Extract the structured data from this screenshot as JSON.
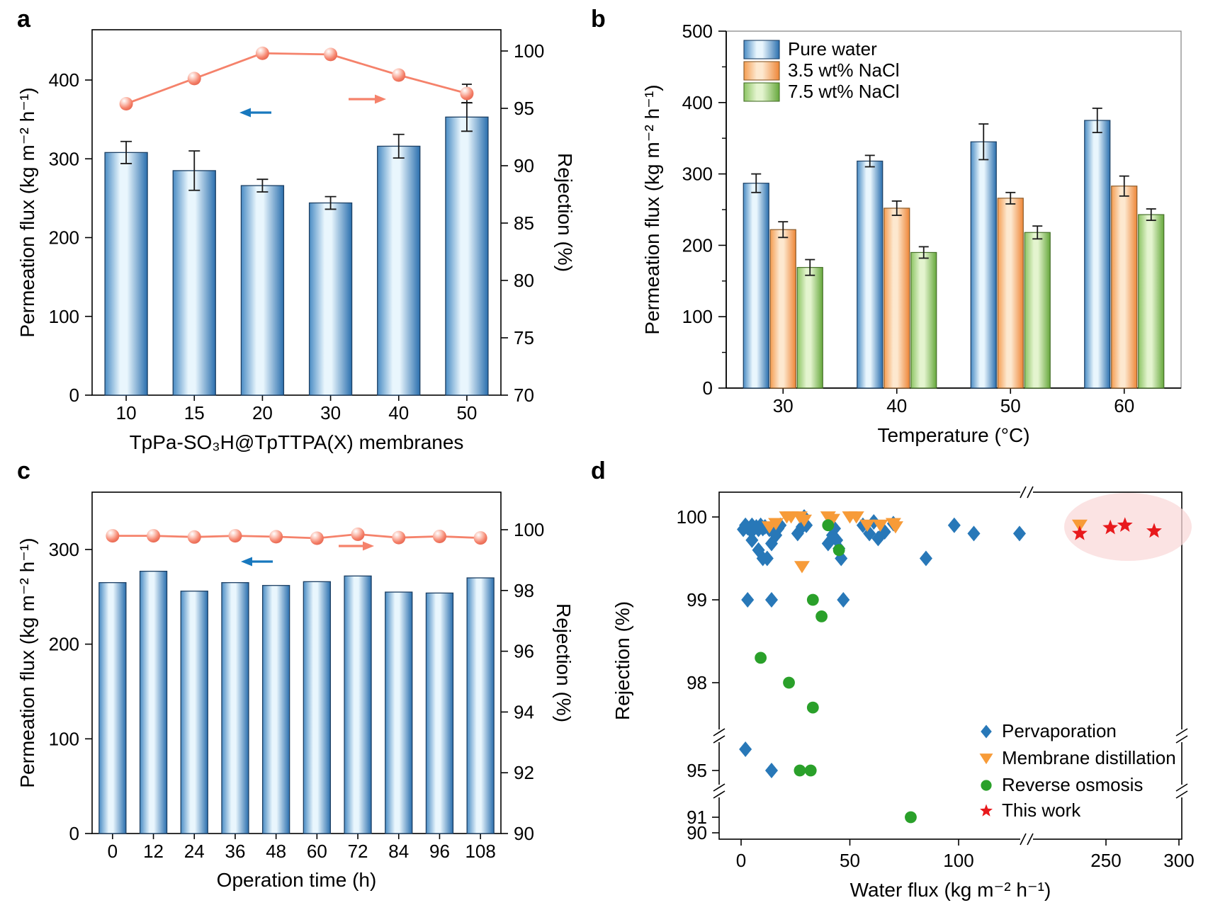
{
  "figure": {
    "background": "#ffffff"
  },
  "colors": {
    "bar_blue": {
      "edge": "#4a8cc4",
      "light": "#e9f6fd",
      "dark": "#2a6fae",
      "border": "#1c3f63"
    },
    "bar_orange": {
      "edge": "#f49d52",
      "light": "#fde8cf",
      "dark": "#ee8637",
      "border": "#8a5a28"
    },
    "bar_green": {
      "edge": "#8cc463",
      "light": "#e4f4cf",
      "dark": "#66a83c",
      "border": "#47702a"
    },
    "line_salmon": "#f5826b",
    "marker_salmon_highlight": "#fcc9bd",
    "arrow_blue": "#1878be",
    "error_bar": "#1a1a1a",
    "axis": "#000000",
    "box_gray": "#8a8a8a",
    "scatter": {
      "pervaporation": "#2878b8",
      "membrane_distillation": "#f79b38",
      "reverse_osmosis": "#2aa02a",
      "this_work": "#e8191c"
    },
    "highlight_ellipse": "#fadada"
  },
  "chart_data": [
    {
      "panel_label": "a",
      "type": "bar+line",
      "categories": [
        "10",
        "15",
        "20",
        "30",
        "40",
        "50"
      ],
      "bars": {
        "name": "Permeation flux",
        "values": [
          308,
          285,
          266,
          244,
          316,
          353
        ],
        "errors": [
          14,
          25,
          8,
          8,
          15,
          18
        ]
      },
      "line": {
        "name": "Rejection",
        "values": [
          95.4,
          97.6,
          99.8,
          99.7,
          97.9,
          96.3
        ],
        "errors": [
          0,
          0,
          0,
          0,
          0,
          0.8
        ]
      },
      "xlabel": "TpPa-SO₃H@TpTTPA(X) membranes",
      "ylabel_left": "Permeation flux (kg m⁻² h⁻¹)",
      "ylabel_right": "Rejection (%)",
      "yticks_left": [
        0,
        100,
        200,
        300,
        400
      ],
      "ylim_left": [
        0,
        464
      ],
      "yticks_right": [
        70,
        75,
        80,
        85,
        90,
        95,
        100
      ],
      "ylim_right": [
        70,
        100
      ],
      "grid": false
    },
    {
      "panel_label": "b",
      "type": "grouped-bar",
      "categories": [
        "30",
        "40",
        "50",
        "60"
      ],
      "xlabel": "Temperature (°C)",
      "ylabel": "Permeation flux (kg m⁻² h⁻¹)",
      "yticks": [
        0,
        100,
        200,
        300,
        400,
        500
      ],
      "ylim": [
        0,
        500
      ],
      "legend_position": "top-left",
      "grid": false,
      "series": [
        {
          "name": "Pure water",
          "color_key": "bar_blue",
          "values": [
            287,
            318,
            345,
            375
          ],
          "errors": [
            13,
            8,
            25,
            17
          ]
        },
        {
          "name": "3.5 wt% NaCl",
          "color_key": "bar_orange",
          "values": [
            222,
            252,
            266,
            283
          ],
          "errors": [
            11,
            10,
            8,
            14
          ]
        },
        {
          "name": "7.5 wt% NaCl",
          "color_key": "bar_green",
          "values": [
            169,
            190,
            218,
            243
          ],
          "errors": [
            11,
            8,
            9,
            8
          ]
        }
      ]
    },
    {
      "panel_label": "c",
      "type": "bar+line",
      "categories": [
        "0",
        "12",
        "24",
        "36",
        "48",
        "60",
        "72",
        "84",
        "96",
        "108"
      ],
      "bars": {
        "name": "Permeation flux",
        "values": [
          265,
          277,
          256,
          265,
          262,
          266,
          272,
          255,
          254,
          270
        ],
        "errors": [
          0,
          0,
          0,
          0,
          0,
          0,
          0,
          0,
          0,
          0
        ]
      },
      "line": {
        "name": "Rejection",
        "values": [
          99.8,
          99.8,
          99.76,
          99.8,
          99.77,
          99.72,
          99.85,
          99.74,
          99.78,
          99.73
        ],
        "errors": [
          0,
          0,
          0,
          0,
          0,
          0,
          0,
          0,
          0,
          0
        ]
      },
      "xlabel": "Operation time (h)",
      "ylabel_left": "Permeation flux (kg m⁻² h⁻¹)",
      "ylabel_right": "Rejection (%)",
      "yticks_left": [
        0,
        100,
        200,
        300
      ],
      "ylim_left": [
        0,
        360
      ],
      "yticks_right": [
        90,
        92,
        94,
        96,
        98,
        100
      ],
      "ylim_right": [
        90,
        100
      ],
      "grid": false
    },
    {
      "panel_label": "d",
      "type": "scatter",
      "xlabel": "Water flux (kg m⁻² h⁻¹)",
      "ylabel": "Rejection (%)",
      "xticks": [
        0,
        50,
        100,
        250,
        300
      ],
      "yticks": [
        100,
        99,
        98,
        95,
        91,
        90
      ],
      "axis_breaks": {
        "x": [
          [
            130,
            195
          ]
        ],
        "y": [
          [
            95.6,
            97.4
          ],
          [
            91.6,
            94.6
          ]
        ]
      },
      "xlim": [
        0,
        300
      ],
      "ylim": [
        90,
        100.3
      ],
      "legend_position": "bottom-right",
      "grid": false,
      "highlight_ellipse": {
        "cx": 260,
        "cy": 99.85,
        "note": "highlights This work points"
      },
      "series": [
        {
          "name": "Pervaporation",
          "key": "pervaporation",
          "marker": "diamond",
          "points": [
            [
              1,
              99.85
            ],
            [
              2,
              99.9
            ],
            [
              3,
              99.87
            ],
            [
              4,
              99.85
            ],
            [
              5,
              99.9
            ],
            [
              6,
              99.86
            ],
            [
              7,
              99.88
            ],
            [
              8,
              99.85
            ],
            [
              9,
              99.9
            ],
            [
              10,
              99.86
            ],
            [
              11,
              99.88
            ],
            [
              13,
              99.85
            ],
            [
              15,
              99.86
            ],
            [
              5,
              99.72
            ],
            [
              8,
              99.6
            ],
            [
              10,
              99.5
            ],
            [
              12,
              99.5
            ],
            [
              14,
              99.68
            ],
            [
              16,
              99.78
            ],
            [
              17,
              99.86
            ],
            [
              18,
              99.9
            ],
            [
              26,
              99.8
            ],
            [
              28,
              99.88
            ],
            [
              29,
              100
            ],
            [
              30,
              99.9
            ],
            [
              40,
              99.68
            ],
            [
              42,
              99.78
            ],
            [
              43,
              99.86
            ],
            [
              44,
              99.72
            ],
            [
              45,
              99.62
            ],
            [
              46,
              99.5
            ],
            [
              56,
              99.9
            ],
            [
              59,
              99.8
            ],
            [
              61,
              99.94
            ],
            [
              63,
              99.74
            ],
            [
              66,
              99.82
            ],
            [
              70,
              99.92
            ],
            [
              85,
              99.5
            ],
            [
              98,
              99.9
            ],
            [
              107,
              99.8
            ],
            [
              128,
              99.8
            ],
            [
              3,
              99
            ],
            [
              14,
              99
            ],
            [
              47,
              99
            ],
            [
              2,
              95.3
            ],
            [
              14,
              95
            ]
          ]
        },
        {
          "name": "Membrane distillation",
          "key": "membrane_distillation",
          "marker": "triangle-down",
          "points": [
            [
              13,
              99.88
            ],
            [
              16,
              99.92
            ],
            [
              21,
              100
            ],
            [
              23,
              100
            ],
            [
              27,
              100
            ],
            [
              29,
              99.96
            ],
            [
              28,
              99.4
            ],
            [
              40,
              100
            ],
            [
              42,
              99.97
            ],
            [
              50,
              100
            ],
            [
              53,
              100
            ],
            [
              58,
              99.9
            ],
            [
              64,
              99.9
            ],
            [
              70,
              99.92
            ],
            [
              71,
              99.88
            ],
            [
              232,
              99.9
            ]
          ]
        },
        {
          "name": "Reverse osmosis",
          "key": "reverse_osmosis",
          "marker": "circle",
          "points": [
            [
              40,
              99.9
            ],
            [
              45,
              99.6
            ],
            [
              33,
              99
            ],
            [
              37,
              98.8
            ],
            [
              9,
              98.3
            ],
            [
              22,
              98
            ],
            [
              33,
              97.7
            ],
            [
              27,
              95
            ],
            [
              32,
              95
            ],
            [
              78,
              91
            ]
          ]
        },
        {
          "name": "This work",
          "key": "this_work",
          "marker": "star",
          "points": [
            [
              232,
              99.8
            ],
            [
              253,
              99.87
            ],
            [
              263,
              99.9
            ],
            [
              283,
              99.83
            ]
          ]
        }
      ]
    }
  ]
}
